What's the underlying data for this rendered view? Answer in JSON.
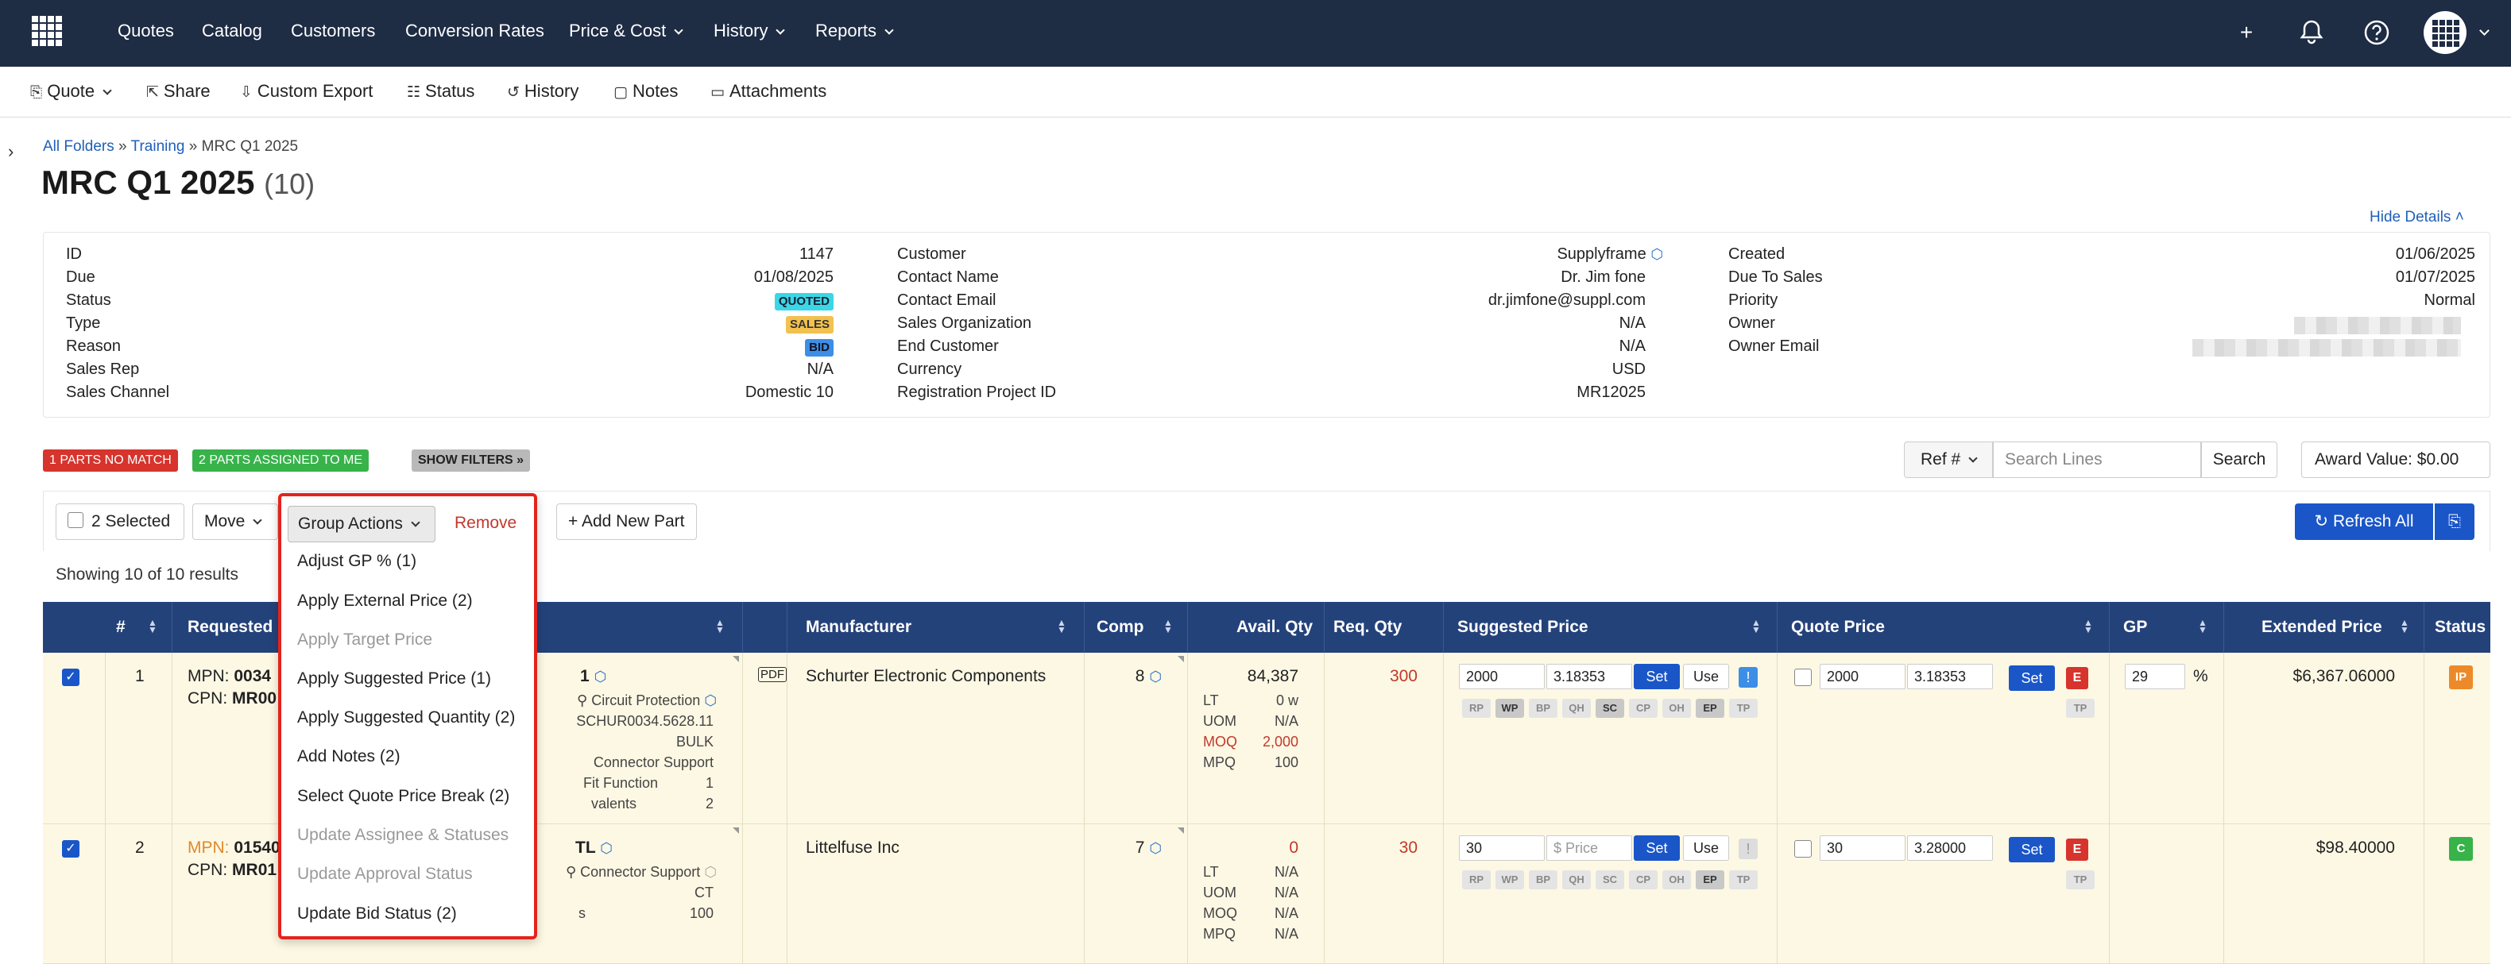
{
  "nav": {
    "items": [
      "Quotes",
      "Catalog",
      "Customers",
      "Conversion Rates",
      "Price & Cost",
      "History",
      "Reports"
    ],
    "icons": [
      "plus-icon",
      "bell-icon",
      "help-icon",
      "grid-icon"
    ]
  },
  "toolbar": {
    "quote": "Quote",
    "share": "Share",
    "custom_export": "Custom Export",
    "status": "Status",
    "history": "History",
    "notes": "Notes",
    "attachments": "Attachments"
  },
  "breadcrumb": {
    "all": "All Folders",
    "training": "Training",
    "current": "MRC Q1 2025",
    "sep": "»"
  },
  "page": {
    "title": "MRC Q1 2025",
    "count": "(10)",
    "hide_details": "Hide Details"
  },
  "details": {
    "col1": [
      {
        "label": "ID",
        "value": "1147"
      },
      {
        "label": "Due",
        "value": "01/08/2025"
      },
      {
        "label": "Status",
        "value": "QUOTED"
      },
      {
        "label": "Type",
        "value": "SALES"
      },
      {
        "label": "Reason",
        "value": "BID"
      },
      {
        "label": "Sales Rep",
        "value": "N/A"
      },
      {
        "label": "Sales Channel",
        "value": "Domestic 10"
      }
    ],
    "col2": [
      {
        "label": "Customer",
        "value": "Supplyframe"
      },
      {
        "label": "Contact Name",
        "value": "Dr. Jim fone"
      },
      {
        "label": "Contact Email",
        "value": "dr.jimfone@suppl.com"
      },
      {
        "label": "Sales Organization",
        "value": "N/A"
      },
      {
        "label": "End Customer",
        "value": "N/A"
      },
      {
        "label": "Currency",
        "value": "USD"
      },
      {
        "label": "Registration Project ID",
        "value": "MR12025"
      }
    ],
    "col3": [
      {
        "label": "Created",
        "value": "01/06/2025"
      },
      {
        "label": "Due To Sales",
        "value": "01/07/2025"
      },
      {
        "label": "Priority",
        "value": "Normal"
      },
      {
        "label": "Owner",
        "value": ""
      },
      {
        "label": "Owner Email",
        "value": ""
      }
    ]
  },
  "filters": {
    "no_match": "1 PARTS NO MATCH",
    "assigned": "2 PARTS ASSIGNED TO ME",
    "show": "SHOW FILTERS »"
  },
  "search": {
    "ref": "Ref #",
    "placeholder": "Search Lines",
    "button": "Search",
    "award": "Award Value:  $0.00"
  },
  "actions": {
    "selected": "2 Selected",
    "move": "Move",
    "group": "Group Actions",
    "remove": "Remove",
    "add": "+ Add New Part",
    "refresh": "Refresh All"
  },
  "showing": "Showing 10 of 10 results",
  "columns": [
    "#",
    "Requested",
    "Manufacturer",
    "Comp",
    "Avail. Qty",
    "Req. Qty",
    "Suggested Price",
    "Quote Price",
    "GP",
    "Extended Price",
    "Status"
  ],
  "dropdown": {
    "items": [
      {
        "label": "Adjust GP % (1)",
        "enabled": true
      },
      {
        "label": "Apply External Price (2)",
        "enabled": true
      },
      {
        "label": "Apply Target Price",
        "enabled": false
      },
      {
        "label": "Apply Suggested Price (1)",
        "enabled": true
      },
      {
        "label": "Apply Suggested Quantity (2)",
        "enabled": true
      },
      {
        "label": "Add Notes (2)",
        "enabled": true
      },
      {
        "label": "Select Quote Price Break (2)",
        "enabled": true
      },
      {
        "label": "Update Assignee & Statuses",
        "enabled": false
      },
      {
        "label": "Update Approval Status",
        "enabled": false
      },
      {
        "label": "Update Bid Status (2)",
        "enabled": true
      }
    ]
  },
  "rows": [
    {
      "num": "1",
      "mpn_label": "MPN:",
      "mpn": "0034",
      "cpn_label": "CPN:",
      "cpn": "MR00",
      "part_suffix": "1",
      "details": [
        {
          "label": "",
          "value": "Circuit Protection"
        },
        {
          "label": "",
          "value": "SCHUR0034.5628.11"
        },
        {
          "label": "",
          "value": "BULK"
        },
        {
          "label": "",
          "value": "Connector Support"
        },
        {
          "label": "Fit Function",
          "value": "1"
        },
        {
          "label": "valents",
          "value": "2"
        }
      ],
      "manufacturer": "Schurter Electronic Components",
      "comp": "8",
      "avail": "84,387",
      "avail_rows": [
        {
          "k": "LT",
          "v": "0 w"
        },
        {
          "k": "UOM",
          "v": "N/A"
        },
        {
          "k": "MOQ",
          "v": "2,000"
        },
        {
          "k": "MPQ",
          "v": "100"
        }
      ],
      "req_qty": "300",
      "sugg_qty": "2000",
      "sugg_price": "3.18353",
      "quote_qty": "2000",
      "quote_price": "3.18353",
      "gp": "29",
      "gp_unit": "%",
      "extended": "$6,367.06000",
      "status": "IP"
    },
    {
      "num": "2",
      "mpn_label": "MPN:",
      "mpn": "01540",
      "cpn_label": "CPN:",
      "cpn": "MR01",
      "part_suffix": "TL",
      "details": [
        {
          "label": "",
          "value": "Connector Support"
        },
        {
          "label": "",
          "value": "CT"
        },
        {
          "label": "s",
          "value": "100"
        }
      ],
      "manufacturer": "Littelfuse Inc",
      "comp": "7",
      "avail": "0",
      "avail_rows": [
        {
          "k": "LT",
          "v": "N/A"
        },
        {
          "k": "UOM",
          "v": "N/A"
        },
        {
          "k": "MOQ",
          "v": "N/A"
        },
        {
          "k": "MPQ",
          "v": "N/A"
        }
      ],
      "req_qty": "30",
      "sugg_qty": "30",
      "sugg_price": "$ Price",
      "quote_qty": "30",
      "quote_price": "3.28000",
      "gp": "",
      "gp_unit": "",
      "extended": "$98.40000",
      "status": "C"
    }
  ],
  "chips": [
    "RP",
    "WP",
    "BP",
    "QH",
    "SC",
    "CP",
    "OH",
    "EP",
    "TP"
  ],
  "set_label": "Set",
  "use_label": "Use",
  "e_label": "E",
  "tp_label": "TP",
  "bang": "!",
  "colors": {
    "nav": "#1e2c44",
    "accent": "#1a56c8",
    "header": "#24427a",
    "row": "#fdf8e4",
    "danger": "#d6342c",
    "highlight": "#e3241c"
  }
}
